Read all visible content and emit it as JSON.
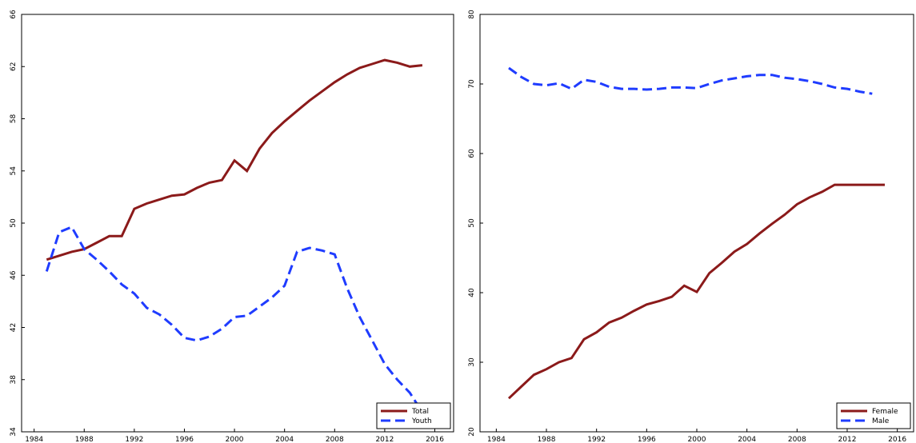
{
  "chart_data": [
    {
      "type": "line",
      "x": [
        1985,
        1986,
        1987,
        1988,
        1989,
        1990,
        1991,
        1992,
        1993,
        1994,
        1995,
        1996,
        1997,
        1998,
        1999,
        2000,
        2001,
        2002,
        2003,
        2004,
        2005,
        2006,
        2007,
        2008,
        2009,
        2010,
        2011,
        2012,
        2013,
        2014,
        2015
      ],
      "series": [
        {
          "name": "Total",
          "color": "#8b1a1a",
          "dash": false,
          "values": [
            47.2,
            47.5,
            47.8,
            48.0,
            48.5,
            49.0,
            49.0,
            51.1,
            51.5,
            51.8,
            52.1,
            52.2,
            52.7,
            53.1,
            53.3,
            54.8,
            54.0,
            55.7,
            56.9,
            57.8,
            58.6,
            59.4,
            60.1,
            60.8,
            61.4,
            61.9,
            62.2,
            62.5,
            62.3,
            62.0,
            62.1
          ]
        },
        {
          "name": "Youth",
          "color": "#1f3cff",
          "dash": true,
          "values": [
            46.3,
            49.3,
            49.7,
            48.0,
            47.2,
            46.3,
            45.3,
            44.6,
            43.5,
            43.0,
            42.2,
            41.2,
            41.0,
            41.3,
            41.9,
            42.8,
            42.9,
            43.6,
            44.3,
            45.2,
            47.8,
            48.1,
            47.9,
            47.6,
            45.0,
            42.8,
            41.0,
            39.2,
            38.0,
            37.0,
            35.5
          ]
        }
      ],
      "xlim": [
        1983,
        2017.5
      ],
      "xticks": [
        1984,
        1988,
        1992,
        1996,
        2000,
        2004,
        2008,
        2012,
        2016
      ],
      "ylim": [
        34,
        66
      ],
      "yticks": [
        34,
        38,
        42,
        46,
        50,
        54,
        58,
        62,
        66
      ],
      "legend": "lower right"
    },
    {
      "type": "line",
      "x": [
        1985,
        1986,
        1987,
        1988,
        1989,
        1990,
        1991,
        1992,
        1993,
        1994,
        1995,
        1996,
        1997,
        1998,
        1999,
        2000,
        2001,
        2002,
        2003,
        2004,
        2005,
        2006,
        2007,
        2008,
        2009,
        2010,
        2011,
        2012,
        2013,
        2014,
        2015
      ],
      "series": [
        {
          "name": "Female",
          "color": "#8b1a1a",
          "dash": false,
          "values": [
            24.8,
            26.5,
            28.2,
            29.0,
            30.0,
            30.6,
            33.3,
            34.3,
            35.7,
            36.4,
            37.4,
            38.3,
            38.8,
            39.4,
            41.0,
            40.1,
            42.8,
            44.3,
            45.9,
            47.0,
            48.5,
            49.9,
            51.2,
            52.7,
            53.7,
            54.5,
            55.5,
            55.5,
            55.5,
            55.5,
            55.5
          ]
        },
        {
          "name": "Male",
          "color": "#1f3cff",
          "dash": true,
          "values": [
            72.3,
            71.0,
            70.0,
            69.8,
            70.1,
            69.3,
            70.6,
            70.3,
            69.6,
            69.3,
            69.3,
            69.2,
            69.3,
            69.5,
            69.5,
            69.4,
            70.0,
            70.5,
            70.8,
            71.1,
            71.3,
            71.3,
            70.9,
            70.7,
            70.4,
            70.0,
            69.5,
            69.3,
            68.9,
            68.6,
            null
          ]
        }
      ],
      "xlim": [
        1982.7,
        2017.3
      ],
      "xticks": [
        1984,
        1988,
        1992,
        1996,
        2000,
        2004,
        2008,
        2012,
        2016
      ],
      "ylim": [
        20,
        80
      ],
      "yticks": [
        20,
        30,
        40,
        50,
        60,
        70,
        80
      ],
      "legend": "lower right"
    }
  ]
}
